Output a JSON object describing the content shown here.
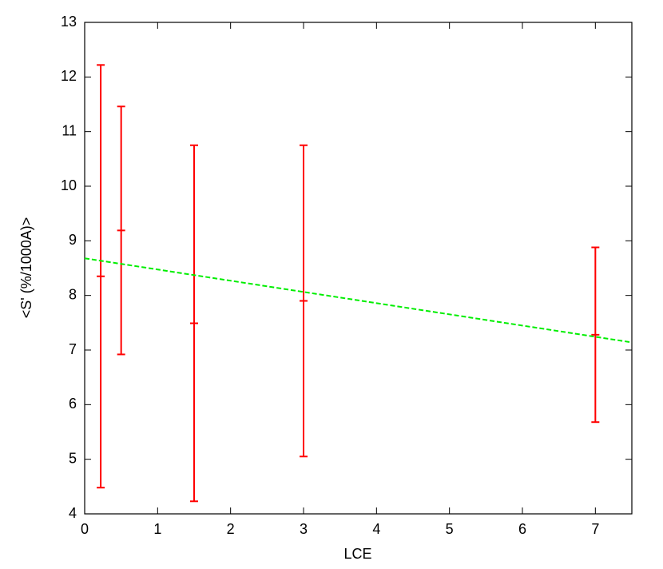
{
  "chart_data": {
    "type": "scatter",
    "xlabel": "LCE",
    "ylabel": "<S' (%/1000A)>",
    "xlim": [
      0,
      7.5
    ],
    "ylim": [
      4,
      13
    ],
    "xticks": [
      0,
      1,
      2,
      3,
      4,
      5,
      6,
      7
    ],
    "yticks": [
      4,
      5,
      6,
      7,
      8,
      9,
      10,
      11,
      12,
      13
    ],
    "grid": false,
    "series": [
      {
        "color": "#ff0000",
        "x": [
          0.22,
          0.5,
          1.5,
          3,
          7
        ],
        "values": [
          8.35,
          9.19,
          7.49,
          7.9,
          7.28
        ],
        "errors": [
          3.87,
          2.27,
          3.26,
          2.85,
          1.6
        ]
      },
      {
        "color": "#00ee00",
        "style": "dashed",
        "x": [
          0,
          7.5
        ],
        "values": [
          8.68,
          7.14
        ]
      }
    ]
  }
}
